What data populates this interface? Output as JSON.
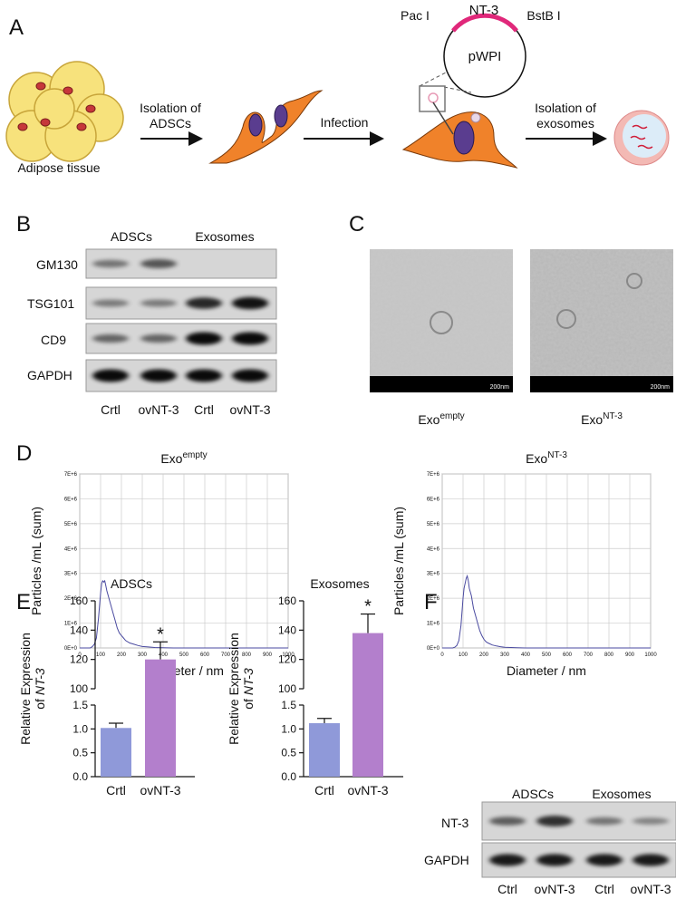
{
  "panel_labels": [
    "A",
    "B",
    "C",
    "D",
    "E",
    "F"
  ],
  "panel_a": {
    "adipose_label": "Adipose tissue",
    "step1": [
      "Isolation of",
      "ADSCs"
    ],
    "step2": "Infection",
    "step3": [
      "Isolation of",
      "exosomes"
    ],
    "plasmid": {
      "name": "pWPI",
      "insert": "NT-3",
      "site_left": "Pac I",
      "site_right": "BstB I"
    }
  },
  "panel_b": {
    "groups": [
      "ADSCs",
      "Exosomes"
    ],
    "rows": [
      "GM130",
      "TSG101",
      "CD9",
      "GAPDH"
    ],
    "lanes": [
      "Crtl",
      "ovNT-3",
      "Crtl",
      "ovNT-3"
    ]
  },
  "panel_c": {
    "images": [
      {
        "label": "Exo",
        "sup": "empty",
        "scale": "200nm"
      },
      {
        "label": "Exo",
        "sup": "NT-3",
        "scale": "200nm"
      }
    ]
  },
  "panel_f": {
    "groups": [
      "ADSCs",
      "Exosomes"
    ],
    "rows": [
      "NT-3",
      "GAPDH"
    ],
    "lanes": [
      "Ctrl",
      "ovNT-3",
      "Ctrl",
      "ovNT-3"
    ]
  },
  "chart_data": [
    {
      "type": "line",
      "title": "Exo",
      "title_sup": "empty",
      "xlabel": "Diameter / nm",
      "ylabel": "Particles /mL (sum)",
      "color": "#4a4aa0",
      "grid": true,
      "x": [
        0,
        50,
        60,
        70,
        80,
        90,
        100,
        105,
        110,
        115,
        120,
        125,
        130,
        140,
        150,
        160,
        170,
        180,
        190,
        200,
        210,
        220,
        240,
        260,
        280,
        300,
        330,
        360,
        400,
        450,
        500,
        1000
      ],
      "values": [
        0,
        0,
        50000,
        150000,
        400000,
        1200000,
        2200000,
        2600000,
        2700000,
        2650000,
        2700000,
        2500000,
        2300000,
        2000000,
        1700000,
        1400000,
        1100000,
        800000,
        600000,
        500000,
        400000,
        300000,
        200000,
        150000,
        100000,
        60000,
        40000,
        20000,
        10000,
        0,
        0,
        0
      ],
      "xlim": [
        0,
        1000
      ],
      "xticks": [
        0,
        100,
        200,
        300,
        400,
        500,
        600,
        700,
        800,
        900,
        1000
      ],
      "ylim": [
        0,
        7000000
      ],
      "yticks": [
        {
          "value": 0,
          "label": "0E+0"
        },
        {
          "value": 1000000,
          "label": "1E+6"
        },
        {
          "value": 2000000,
          "label": "2E+6"
        },
        {
          "value": 3000000,
          "label": "3E+6"
        },
        {
          "value": 4000000,
          "label": "4E+6"
        },
        {
          "value": 5000000,
          "label": "5E+6"
        },
        {
          "value": 6000000,
          "label": "6E+6"
        },
        {
          "value": 7000000,
          "label": "7E+6"
        }
      ]
    },
    {
      "type": "line",
      "title": "Exo",
      "title_sup": "NT-3",
      "xlabel": "Diameter / nm",
      "ylabel": "Particles /mL (sum)",
      "color": "#4a4aa0",
      "grid": true,
      "x": [
        0,
        50,
        60,
        70,
        80,
        90,
        100,
        105,
        110,
        115,
        120,
        125,
        130,
        140,
        150,
        160,
        170,
        180,
        190,
        200,
        210,
        220,
        240,
        260,
        280,
        300,
        330,
        360,
        400,
        450,
        500,
        1000
      ],
      "values": [
        0,
        0,
        30000,
        100000,
        300000,
        900000,
        2000000,
        2400000,
        2600000,
        2800000,
        2900000,
        2700000,
        2400000,
        2100000,
        1600000,
        1300000,
        1000000,
        700000,
        500000,
        350000,
        250000,
        200000,
        120000,
        80000,
        50000,
        30000,
        20000,
        10000,
        0,
        0,
        0,
        0
      ],
      "xlim": [
        0,
        1000
      ],
      "xticks": [
        0,
        100,
        200,
        300,
        400,
        500,
        600,
        700,
        800,
        900,
        1000
      ],
      "ylim": [
        0,
        7000000
      ],
      "yticks": [
        {
          "value": 0,
          "label": "0E+0"
        },
        {
          "value": 1000000,
          "label": "1E+6"
        },
        {
          "value": 2000000,
          "label": "2E+6"
        },
        {
          "value": 3000000,
          "label": "3E+6"
        },
        {
          "value": 4000000,
          "label": "4E+6"
        },
        {
          "value": 5000000,
          "label": "5E+6"
        },
        {
          "value": 6000000,
          "label": "6E+6"
        },
        {
          "value": 7000000,
          "label": "7E+6"
        }
      ]
    },
    {
      "type": "bar",
      "title": "ADSCs",
      "ylabel": [
        "Relative Expression",
        "of",
        "NT-3"
      ],
      "categories": [
        "Crtl",
        "ovNT-3"
      ],
      "values": [
        1.02,
        120
      ],
      "errors": [
        0.1,
        12
      ],
      "colors": [
        "#8f99d9",
        "#b37fcc"
      ],
      "significance": [
        null,
        "*"
      ],
      "ylim": [
        0,
        160
      ],
      "ybreak": [
        1.5,
        100
      ],
      "yticks": [
        {
          "value": 0,
          "label": "0.0"
        },
        0.5,
        {
          "value": 1,
          "label": "1.0"
        },
        1.5,
        100,
        120,
        140,
        160
      ]
    },
    {
      "type": "bar",
      "title": "Exosomes",
      "ylabel": [
        "Relative Expression",
        "of",
        "NT-3"
      ],
      "categories": [
        "Crtl",
        "ovNT-3"
      ],
      "values": [
        1.12,
        138
      ],
      "errors": [
        0.1,
        13
      ],
      "colors": [
        "#8f99d9",
        "#b37fcc"
      ],
      "significance": [
        null,
        "*"
      ],
      "ylim": [
        0,
        160
      ],
      "ybreak": [
        1.5,
        100
      ],
      "yticks": [
        {
          "value": 0,
          "label": "0.0"
        },
        0.5,
        {
          "value": 1,
          "label": "1.0"
        },
        1.5,
        100,
        120,
        140,
        160
      ]
    }
  ]
}
